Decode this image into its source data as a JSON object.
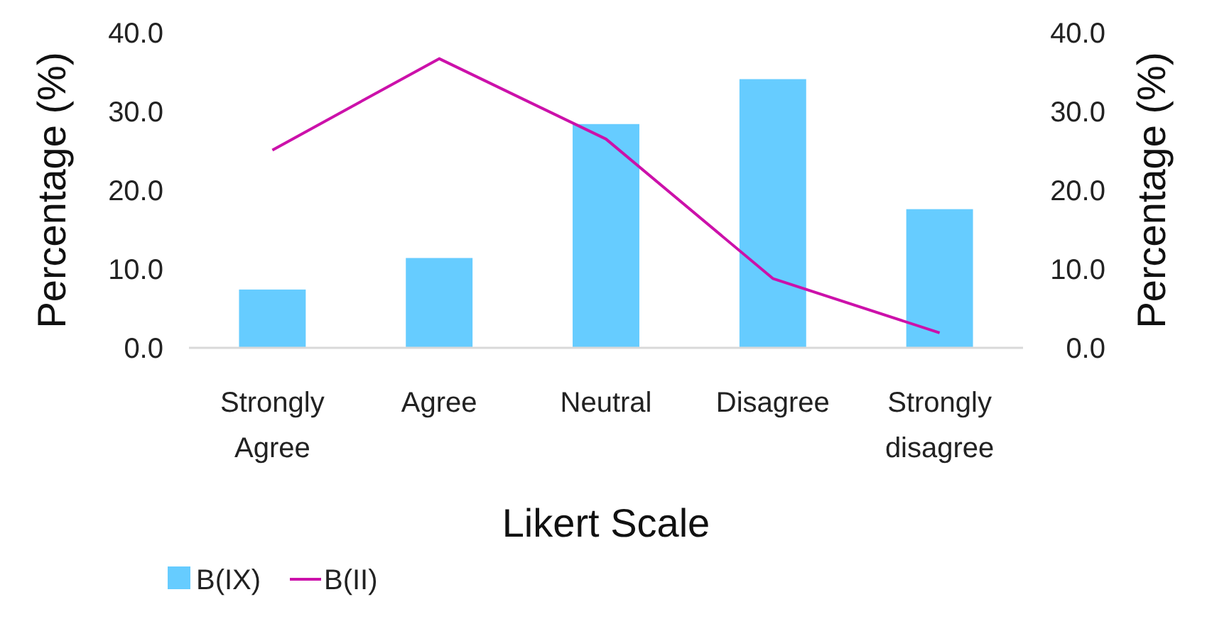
{
  "chart_data": {
    "type": "bar",
    "xlabel": "Likert Scale",
    "ylabel": "Percentage (%)",
    "y2label": "Percentage (%)",
    "categories": [
      "Strongly Agree",
      "Agree",
      "Neutral",
      "Disagree",
      "Strongly disagree"
    ],
    "series": [
      {
        "name": "B(IX)",
        "color": "#66ccff",
        "values": [
          7.4,
          11.4,
          28.4,
          34.1,
          17.6
        ]
      },
      {
        "name": "B(II)",
        "type": "line",
        "color": "#cc11aa",
        "values": [
          25.1,
          36.7,
          26.5,
          8.8,
          1.9
        ]
      }
    ],
    "ylim": [
      0,
      40
    ],
    "yticks": [
      {
        "value": 0,
        "label": "0.0"
      },
      {
        "value": 10,
        "label": "10.0"
      },
      {
        "value": 20,
        "label": "20.0"
      },
      {
        "value": 30,
        "label": "30.0"
      },
      {
        "value": 40,
        "label": "40.0"
      }
    ],
    "y2lim": [
      0,
      40
    ],
    "y2ticks": [
      {
        "value": 0,
        "label": "0.0"
      },
      {
        "value": 10,
        "label": "10.0"
      },
      {
        "value": 20,
        "label": "20.0"
      },
      {
        "value": 30,
        "label": "30.0"
      },
      {
        "value": 40,
        "label": "40.0"
      }
    ],
    "grid": false,
    "legend": "bottom left",
    "marker": "none",
    "line_style": "solid"
  }
}
